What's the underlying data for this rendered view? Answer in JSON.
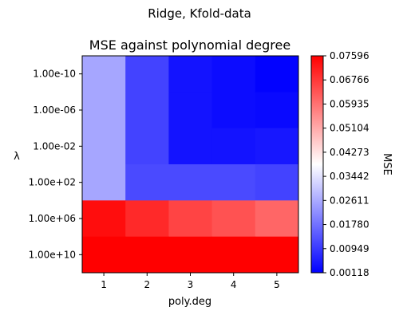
{
  "chart_data": {
    "type": "heatmap",
    "suptitle": "Ridge, Kfold-data",
    "title": "MSE against polynomial degree",
    "xlabel": "poly.deg",
    "ylabel": "λ",
    "x_categories": [
      "1",
      "2",
      "3",
      "4",
      "5"
    ],
    "y_categories": [
      "1.00e-10",
      "1.00e-06",
      "1.00e-02",
      "1.00e+02",
      "1.00e+06",
      "1.00e+10"
    ],
    "values": [
      [
        0.0255,
        0.011,
        0.004,
        0.003,
        0.0015
      ],
      [
        0.0255,
        0.011,
        0.004,
        0.003,
        0.0025
      ],
      [
        0.0255,
        0.011,
        0.004,
        0.004,
        0.0045
      ],
      [
        0.0255,
        0.012,
        0.012,
        0.012,
        0.011
      ],
      [
        0.074,
        0.07,
        0.066,
        0.064,
        0.061
      ],
      [
        0.0759,
        0.0759,
        0.0759,
        0.0759,
        0.0759
      ]
    ],
    "colorbar": {
      "label": "MSE",
      "min": 0.00118,
      "max": 0.07596,
      "ticks": [
        "0.07596",
        "0.06766",
        "0.05935",
        "0.05104",
        "0.04273",
        "0.03442",
        "0.02611",
        "0.01780",
        "0.00949",
        "0.00118"
      ],
      "colormap": "bwr",
      "colors": {
        "low": "#0000ff",
        "mid": "#ffffff",
        "high": "#ff0000"
      }
    },
    "grid": false
  }
}
